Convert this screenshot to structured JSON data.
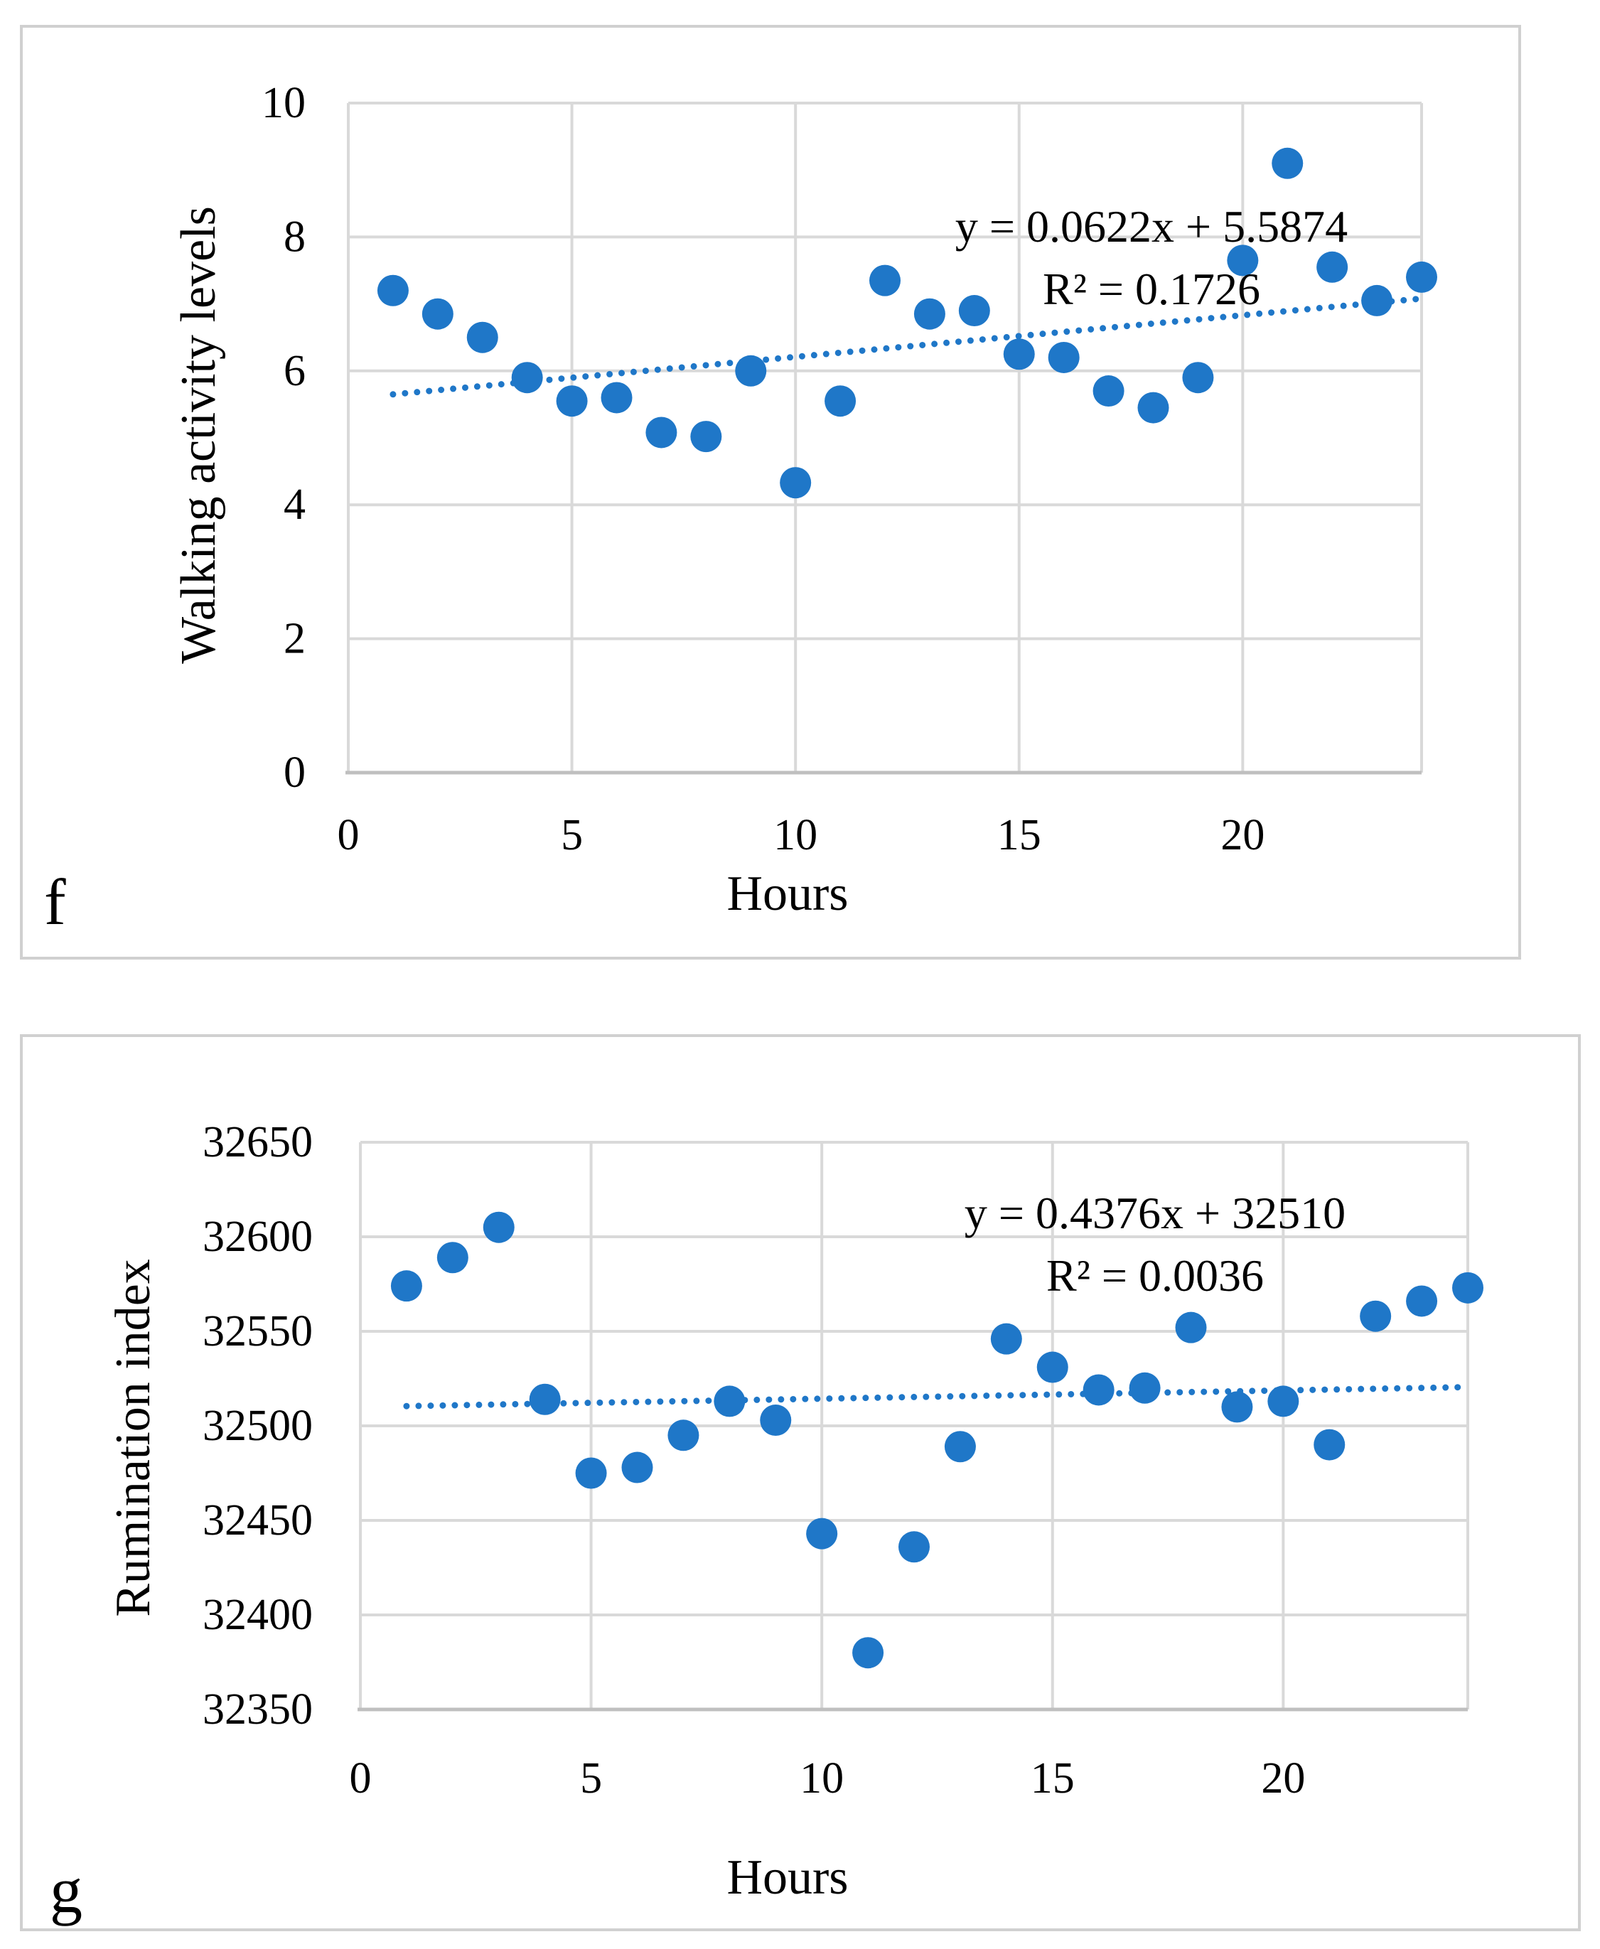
{
  "colors": {
    "marker": "#1f77c8",
    "trend": "#1f77c8",
    "grid": "#d9d9d9",
    "frame": "#d0d0d0"
  },
  "chart_data": [
    {
      "type": "scatter",
      "panel_label": "f",
      "xlabel": "Hours",
      "ylabel": "Walking activity levels",
      "xlim": [
        0,
        24
      ],
      "ylim": [
        0,
        10
      ],
      "x_ticks": [
        0,
        5,
        10,
        15,
        20
      ],
      "y_ticks": [
        0,
        2,
        4,
        6,
        8,
        10
      ],
      "grid": true,
      "series": [
        {
          "name": "Walking activity",
          "x": [
            1,
            2,
            3,
            4,
            5,
            6,
            7,
            8,
            9,
            10,
            11,
            12,
            13,
            14,
            15,
            16,
            17,
            18,
            19,
            20,
            21,
            22,
            23,
            24
          ],
          "y": [
            7.2,
            6.85,
            6.5,
            5.9,
            5.55,
            5.6,
            5.08,
            5.02,
            6.0,
            4.33,
            5.55,
            7.35,
            6.85,
            6.9,
            6.25,
            6.2,
            5.7,
            5.45,
            5.9,
            7.65,
            9.1,
            7.55,
            7.05,
            7.4
          ]
        }
      ],
      "trendline": {
        "slope": 0.0622,
        "intercept": 5.5874,
        "x_range": [
          1,
          24
        ]
      },
      "equation_label": "y = 0.0622x + 5.5874",
      "r2_label": "R² = 0.1726"
    },
    {
      "type": "scatter",
      "panel_label": "g",
      "xlabel": "Hours",
      "ylabel": "Rumination index",
      "xlim": [
        0,
        24
      ],
      "ylim": [
        32350,
        32650
      ],
      "x_ticks": [
        0,
        5,
        10,
        15,
        20
      ],
      "y_ticks": [
        32350,
        32400,
        32450,
        32500,
        32550,
        32600,
        32650
      ],
      "grid": true,
      "series": [
        {
          "name": "Rumination",
          "x": [
            1,
            2,
            3,
            4,
            5,
            6,
            7,
            8,
            9,
            10,
            11,
            12,
            13,
            14,
            15,
            16,
            17,
            18,
            19,
            20,
            21,
            22,
            23,
            24
          ],
          "y": [
            32574,
            32589,
            32605,
            32514,
            32475,
            32478,
            32495,
            32513,
            32503,
            32443,
            32380,
            32436,
            32489,
            32546,
            32531,
            32519,
            32520,
            32552,
            32510,
            32513,
            32490,
            32558,
            32566,
            32573
          ]
        }
      ],
      "trendline": {
        "slope": 0.4376,
        "intercept": 32510,
        "x_range": [
          1,
          24
        ]
      },
      "equation_label": "y = 0.4376x + 32510",
      "r2_label": "R² = 0.0036"
    }
  ]
}
